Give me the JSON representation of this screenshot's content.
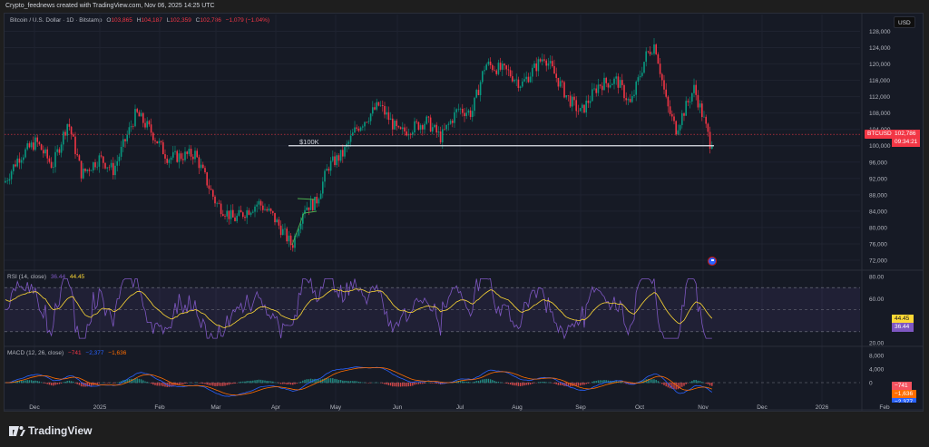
{
  "caption": "Crypto_feednews created with TradingView.com, Nov 06, 2025 14:25 UTC",
  "header": {
    "symbol": "Bitcoin / U.S. Dollar · 1D · Bitstamp",
    "open_label": "O",
    "open": "103,865",
    "high_label": "H",
    "high": "104,187",
    "low_label": "L",
    "low": "102,359",
    "close_label": "C",
    "close": "102,786",
    "change": "−1,079 (−1.04%)",
    "currency_button": "USD"
  },
  "price_tag": {
    "ticker": "BTCUSD",
    "price": "102,786",
    "countdown": "09:34:21"
  },
  "annotation": {
    "label": "$100K"
  },
  "rsi": {
    "title": "RSI (14, close)",
    "value": "36.44",
    "ma": "44.45",
    "axis": [
      "80.00",
      "60.00",
      "20.00"
    ]
  },
  "macd": {
    "title": "MACD (12, 26, close)",
    "hist": "−741",
    "macd": "−2,377",
    "signal": "−1,636",
    "axis": [
      "8,000",
      "4,000",
      "0"
    ]
  },
  "footer": {
    "brand": "TradingView"
  },
  "colors": {
    "up": "#089981",
    "down": "#f23645",
    "rsi": "#7e57c2",
    "rsi_ma": "#fdd835",
    "macd": "#2962ff",
    "signal": "#ff6d00"
  },
  "chart_data": {
    "type": "candlestick",
    "title": "Bitcoin / U.S. Dollar · 1D · Bitstamp",
    "x_ticks": [
      "Dec",
      "2025",
      "Feb",
      "Mar",
      "Apr",
      "May",
      "Jun",
      "Jul",
      "Aug",
      "Sep",
      "Oct",
      "Nov",
      "Dec",
      "2026",
      "Feb"
    ],
    "y_ticks": [
      72000,
      76000,
      80000,
      84000,
      88000,
      92000,
      96000,
      100000,
      104000,
      108000,
      112000,
      116000,
      120000,
      124000,
      128000
    ],
    "ylim": [
      70000,
      129000
    ],
    "key_points": [
      {
        "x": "Nov 2024",
        "y": 91000
      },
      {
        "x": "Dec 2024",
        "y": 106000
      },
      {
        "x": "Jan 2025",
        "y": 94000
      },
      {
        "x": "Jan 20 2025",
        "y": 108000
      },
      {
        "x": "Feb 2025",
        "y": 96000
      },
      {
        "x": "Mar 2025",
        "y": 80000
      },
      {
        "x": "Apr 2025",
        "y": 75000
      },
      {
        "x": "May 2025",
        "y": 104000
      },
      {
        "x": "Jun 2025",
        "y": 105000
      },
      {
        "x": "Jul 2025",
        "y": 121000
      },
      {
        "x": "Aug 2025",
        "y": 123500
      },
      {
        "x": "Sep 2025",
        "y": 108000
      },
      {
        "x": "Oct 2025",
        "y": 125500
      },
      {
        "x": "Oct 10 2025",
        "y": 105000
      },
      {
        "x": "Nov 06 2025",
        "y": 102786
      }
    ],
    "last": {
      "open": 103865,
      "high": 104187,
      "low": 102359,
      "close": 102786
    },
    "horizontal_line": {
      "label": "$100K",
      "y": 100000
    },
    "indicators": {
      "rsi": {
        "period": 14,
        "value": 36.44,
        "ma": 44.45,
        "levels": [
          70,
          50,
          30
        ]
      },
      "macd": {
        "fast": 12,
        "slow": 26,
        "hist": -741,
        "macd": -2377,
        "signal": -1636
      }
    }
  }
}
